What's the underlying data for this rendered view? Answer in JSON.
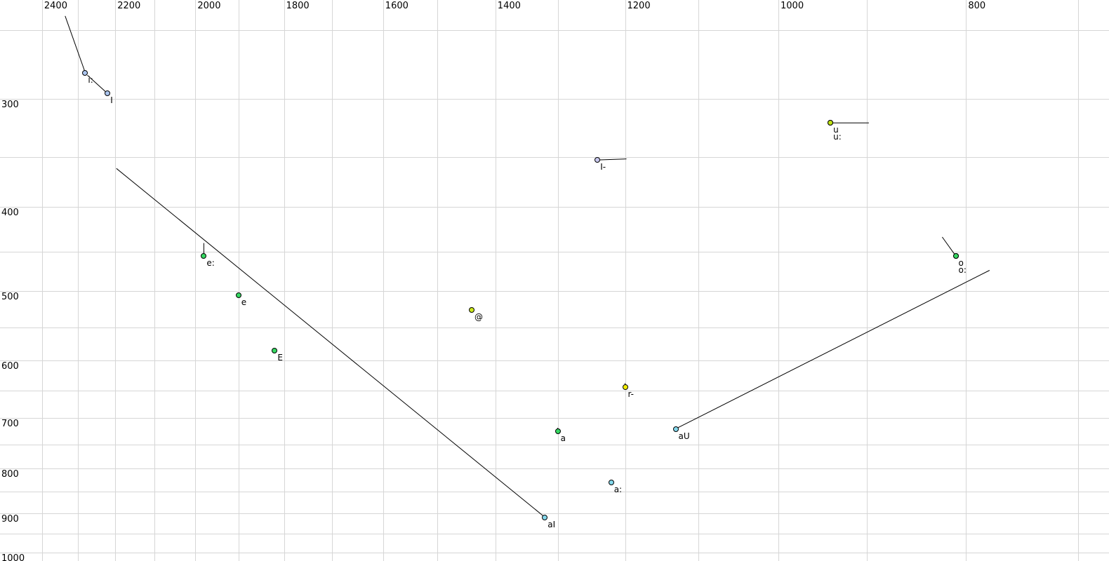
{
  "chart_data": {
    "type": "scatter",
    "title": "",
    "description": "Vowel formant plot: F2 (Hz) on horizontal axis (reversed, log scale), F1 (Hz) on vertical axis (log scale). Points are SAMPA vowel labels, some with formant trajectory lines.",
    "x_axis": {
      "scale": "log",
      "reversed": true,
      "left_hz": 2523,
      "right_hz": 675,
      "tick_labels": [
        2400,
        2200,
        2000,
        1800,
        1600,
        1400,
        1200,
        1000,
        800
      ],
      "gridline_start": 700,
      "gridline_end": 2400,
      "gridline_step": 100
    },
    "y_axis": {
      "scale": "log",
      "top_hz": 231,
      "bottom_hz": 1022,
      "tick_labels": [
        300,
        400,
        500,
        600,
        700,
        800,
        900,
        1000
      ],
      "gridline_start": 250,
      "gridline_end": 1000,
      "gridline_step": 50
    },
    "grid_color": "#d6d6d6",
    "trail_color": "#000000",
    "colors": {
      "blue": "#aac4ee",
      "lavender": "#c8c8ee",
      "chartreuse": "#bfe414",
      "chartreuse2": "#cce81e",
      "yellow": "#f2ee02",
      "green": "#36d862",
      "cyan": "#84d8ec"
    },
    "points": [
      {
        "label": "i:",
        "f2": 2280,
        "f1": 280,
        "group": "blue",
        "trail": [
          [
            2335,
            241
          ]
        ]
      },
      {
        "label": "I",
        "f2": 2220,
        "f1": 296,
        "group": "blue",
        "trail": [
          [
            2274,
            282
          ]
        ]
      },
      {
        "label": "I-",
        "f2": 1240,
        "f1": 353,
        "group": "lavender",
        "trail": [
          [
            1198,
            352
          ]
        ]
      },
      {
        "label": "u",
        "f2": 940,
        "f1": 320,
        "group": "chartreuse",
        "row": 0
      },
      {
        "label": "u:",
        "f2": 940,
        "f1": 320,
        "group": "chartreuse",
        "trail": [
          [
            898,
            320
          ]
        ],
        "row": 1
      },
      {
        "label": "e:",
        "f2": 1980,
        "f1": 455,
        "group": "green",
        "trail": [
          [
            1980,
            440
          ]
        ]
      },
      {
        "label": "e",
        "f2": 1900,
        "f1": 505,
        "group": "green"
      },
      {
        "label": "@",
        "f2": 1440,
        "f1": 525,
        "group": "chartreuse2"
      },
      {
        "label": "E",
        "f2": 1820,
        "f1": 585,
        "group": "green"
      },
      {
        "label": "r-",
        "f2": 1200,
        "f1": 645,
        "group": "yellow",
        "trail": [
          [
            1200,
            638
          ]
        ]
      },
      {
        "label": "a",
        "f2": 1300,
        "f1": 725,
        "group": "green",
        "trail": [
          [
            1300,
            718
          ]
        ]
      },
      {
        "label": "aU",
        "f2": 1130,
        "f1": 720,
        "group": "cyan",
        "trail": [
          [
            778,
            473
          ]
        ]
      },
      {
        "label": "a:",
        "f2": 1220,
        "f1": 830,
        "group": "cyan"
      },
      {
        "label": "aI",
        "f2": 1320,
        "f1": 910,
        "group": "cyan",
        "trail": [
          [
            2197,
            361
          ]
        ]
      },
      {
        "label": "o",
        "f2": 810,
        "f1": 455,
        "group": "green",
        "row": 0
      },
      {
        "label": "o:",
        "f2": 810,
        "f1": 455,
        "group": "green",
        "trail": [
          [
            823,
            433
          ]
        ],
        "row": 1
      }
    ]
  }
}
